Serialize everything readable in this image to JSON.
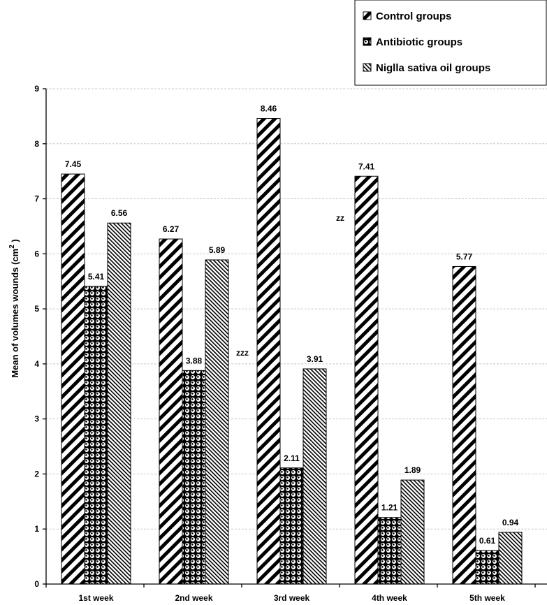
{
  "chart_data": {
    "type": "bar",
    "categories": [
      "1st week",
      "2nd week",
      "3rd week",
      "4th week",
      "5th week"
    ],
    "series": [
      {
        "name": "Control groups",
        "values": [
          7.45,
          6.27,
          8.46,
          7.41,
          5.77
        ],
        "labels": [
          "7.45",
          "6.27",
          "8.46",
          "7.41",
          "5.77"
        ],
        "pattern": "diagonal-stripes"
      },
      {
        "name": "Antibiotic groups",
        "values": [
          5.41,
          3.88,
          2.11,
          1.21,
          0.61
        ],
        "labels": [
          "5.41",
          "3.88",
          "2.11",
          "1.21",
          "0.61"
        ],
        "pattern": "dots"
      },
      {
        "name": "Niglla sativa oil groups",
        "values": [
          6.56,
          5.89,
          3.91,
          1.89,
          0.94
        ],
        "labels": [
          "6.56",
          "5.89",
          "3.91",
          "1.89",
          "0.94"
        ],
        "pattern": "fine-hatch"
      }
    ],
    "ylabel_text": "Mean of volumes wounds (cm",
    "ylabel_superscript": "2",
    "ylabel_close": " )",
    "ylim": [
      0,
      9
    ],
    "yticks": [
      "0",
      "1",
      "2",
      "3",
      "4",
      "5",
      "6",
      "7",
      "8",
      "9"
    ],
    "grid": true,
    "legend_position": "top-right",
    "annotations": [
      {
        "text": "zzz",
        "category": "2nd week",
        "y": 4.2
      },
      {
        "text": "zz",
        "category": "3rd week",
        "y": 6.65
      }
    ]
  }
}
